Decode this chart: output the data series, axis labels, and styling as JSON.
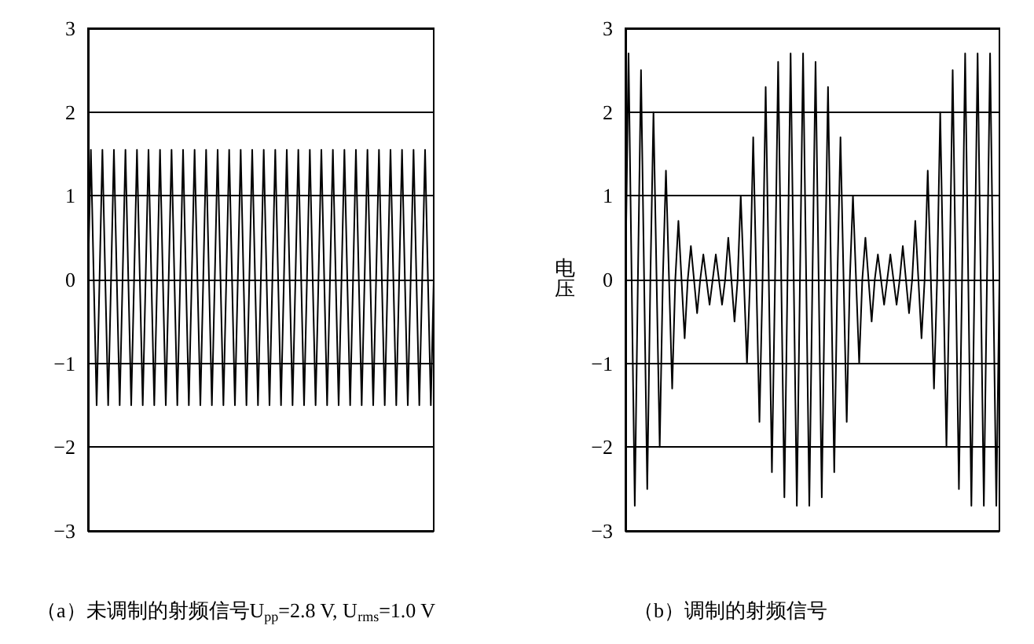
{
  "chart_data": [
    {
      "type": "line",
      "title": "（a）未调制的射频信号U$_{pp}$=2.8 V, U$_{rms}$=1.0 V",
      "categories": [
        null,
        null,
        null,
        null,
        null,
        null,
        null,
        null,
        null,
        null,
        null,
        null,
        null,
        null,
        null,
        null,
        null,
        null,
        null,
        null,
        null,
        null,
        null,
        null,
        null,
        null,
        null,
        null,
        null,
        null,
        null,
        null,
        null,
        null,
        null,
        null,
        null,
        null,
        null,
        null,
        null,
        null,
        null,
        null,
        null,
        null,
        null,
        null,
        null,
        null,
        null,
        null,
        null,
        null,
        null,
        null,
        null,
        null,
        null,
        null,
        null,
        null,
        null,
        null,
        null,
        null,
        null,
        null,
        null,
        null,
        null,
        null,
        null,
        null,
        null,
        null,
        null,
        null,
        null,
        null,
        null,
        null,
        null,
        null,
        null,
        null,
        null,
        null,
        null,
        null,
        null,
        null,
        null,
        null,
        null,
        null,
        null,
        null,
        null,
        null,
        null,
        null,
        null,
        null,
        null,
        null,
        null,
        null,
        null,
        null,
        null,
        null,
        null,
        null,
        null,
        null,
        null,
        null,
        null,
        null,
        null
      ],
      "series": [
        {
          "color": "#000000",
          "values": [
            0,
            1.55,
            0,
            -1.5,
            0,
            1.55,
            0,
            -1.5,
            0,
            1.55,
            0,
            -1.5,
            0,
            1.55,
            0,
            -1.5,
            0,
            1.55,
            0,
            -1.5,
            0,
            1.55,
            0,
            -1.5,
            0,
            1.55,
            0,
            -1.5,
            0,
            1.55,
            0,
            -1.5,
            0,
            1.55,
            0,
            -1.5,
            0,
            1.55,
            0,
            -1.5,
            0,
            1.55,
            0,
            -1.5,
            0,
            1.55,
            0,
            -1.5,
            0,
            1.55,
            0,
            -1.5,
            0,
            1.55,
            0,
            -1.5,
            0,
            1.55,
            0,
            -1.5,
            0,
            1.55,
            0,
            -1.5,
            0,
            1.55,
            0,
            -1.5,
            0,
            1.55,
            0,
            -1.5,
            0,
            1.55,
            0,
            -1.5,
            0,
            1.55,
            0,
            -1.5,
            0,
            1.55,
            0,
            -1.5,
            0,
            1.55,
            0,
            -1.5,
            0,
            1.55,
            0,
            -1.5,
            0,
            1.55,
            0,
            -1.5,
            0,
            1.55,
            0,
            -1.5,
            0,
            1.55,
            0,
            -1.5,
            0,
            1.55,
            0,
            -1.5,
            0,
            1.55,
            0,
            -1.5,
            0,
            1.55,
            0,
            -1.5,
            0,
            1.55,
            0,
            -1.5,
            0
          ]
        }
      ],
      "ylim": [
        -3,
        3
      ],
      "yticks": [
        {
          "value": -3,
          "label": "−3"
        },
        {
          "value": -2,
          "label": "−2"
        },
        {
          "value": -1,
          "label": "−1"
        },
        0,
        1,
        2,
        3
      ],
      "grid": "y",
      "tick_labels": "y",
      "line_style": "solid"
    },
    {
      "type": "line",
      "title": "（b）调制的射频信号",
      "ylabel": "电压",
      "categories": [
        null,
        null,
        null,
        null,
        null,
        null,
        null,
        null,
        null,
        null,
        null,
        null,
        null,
        null,
        null,
        null,
        null,
        null,
        null,
        null,
        null,
        null,
        null,
        null,
        null,
        null,
        null,
        null,
        null,
        null,
        null,
        null,
        null,
        null,
        null,
        null,
        null,
        null,
        null,
        null,
        null,
        null,
        null,
        null,
        null,
        null,
        null,
        null,
        null,
        null,
        null,
        null,
        null,
        null,
        null,
        null,
        null,
        null,
        null,
        null,
        null,
        null,
        null,
        null,
        null,
        null,
        null,
        null,
        null,
        null,
        null,
        null,
        null,
        null,
        null,
        null,
        null,
        null,
        null,
        null,
        null,
        null,
        null,
        null,
        null,
        null,
        null,
        null,
        null,
        null,
        null,
        null,
        null,
        null,
        null,
        null,
        null,
        null,
        null,
        null,
        null,
        null,
        null,
        null,
        null,
        null,
        null,
        null,
        null,
        null,
        null,
        null,
        null,
        null,
        null,
        null,
        null,
        null,
        null,
        null,
        null
      ],
      "series": [
        {
          "color": "#000000",
          "values": [
            0,
            2.7,
            0,
            -2.7,
            0,
            2.5,
            0,
            -2.5,
            0,
            2.0,
            0,
            -2.0,
            0,
            1.3,
            0,
            -1.3,
            0,
            0.7,
            0,
            -0.7,
            0,
            0.4,
            0,
            -0.4,
            0,
            0.3,
            0,
            -0.3,
            0,
            0.3,
            0,
            -0.3,
            0,
            0.5,
            0,
            -0.5,
            0,
            1.0,
            0,
            -1.0,
            0,
            1.7,
            0,
            -1.7,
            0,
            2.3,
            0,
            -2.3,
            0,
            2.6,
            0,
            -2.6,
            0,
            2.7,
            0,
            -2.7,
            0,
            2.7,
            0,
            -2.7,
            0,
            2.6,
            0,
            -2.6,
            0,
            2.3,
            0,
            -2.3,
            0,
            1.7,
            0,
            -1.7,
            0,
            1.0,
            0,
            -1.0,
            0,
            0.5,
            0,
            -0.5,
            0,
            0.3,
            0,
            -0.3,
            0,
            0.3,
            0,
            -0.3,
            0,
            0.4,
            0,
            -0.4,
            0,
            0.7,
            0,
            -0.7,
            0,
            1.3,
            0,
            -1.3,
            0,
            2.0,
            0,
            -2.0,
            0,
            2.5,
            0,
            -2.5,
            0,
            2.7,
            0,
            -2.7,
            0,
            2.7,
            0,
            -2.7,
            0,
            2.7,
            0,
            -2.7,
            0
          ]
        }
      ],
      "ylim": [
        -3,
        3
      ],
      "yticks": [
        {
          "value": -3,
          "label": "−3"
        },
        {
          "value": -2,
          "label": "−2"
        },
        {
          "value": -1,
          "label": "−1"
        },
        0,
        1,
        2,
        3
      ],
      "grid": "y",
      "tick_labels": "y",
      "line_style": "solid"
    }
  ]
}
